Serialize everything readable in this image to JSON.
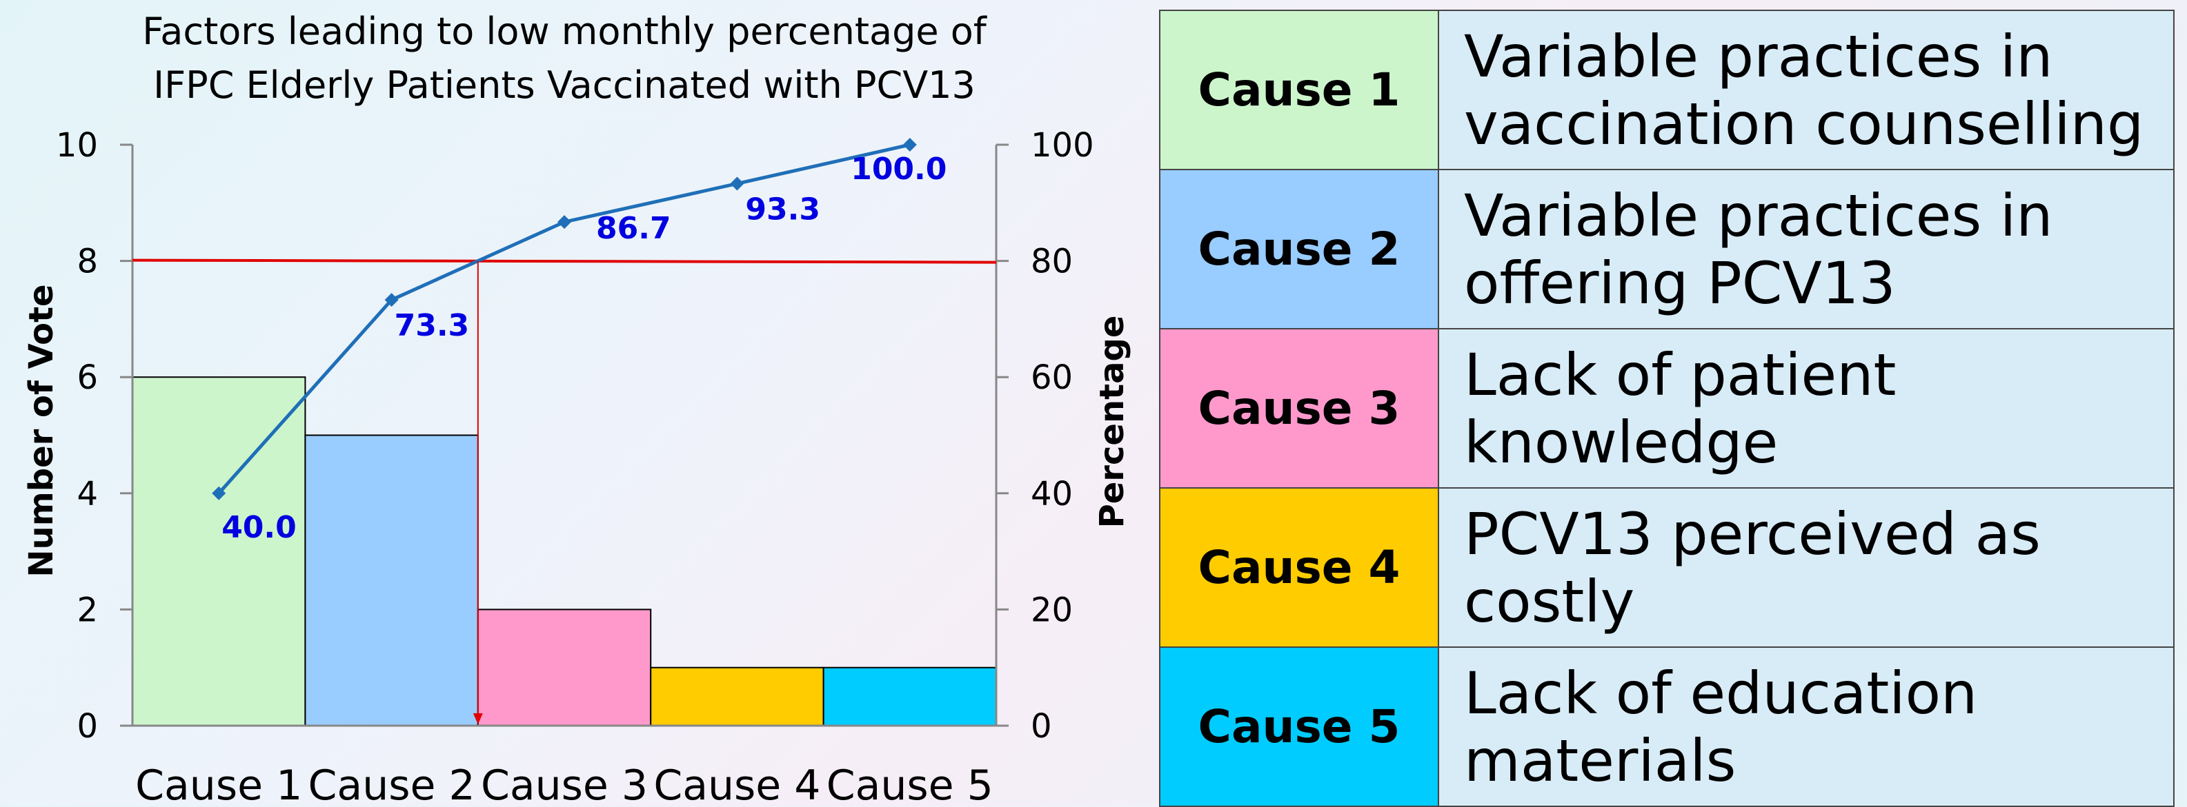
{
  "chart_data": {
    "type": "bar",
    "title_lines": [
      "Factors leading to low monthly percentage of",
      "IFPC Elderly Patients Vaccinated with PCV13"
    ],
    "categories": [
      "Cause 1",
      "Cause 2",
      "Cause 3",
      "Cause 4",
      "Cause 5"
    ],
    "values": [
      6,
      5,
      2,
      1,
      1
    ],
    "bar_colors": [
      "#ccf5cc",
      "#99ccff",
      "#ff99cc",
      "#ffcc00",
      "#00ccff"
    ],
    "ylabel": "Number of Vote",
    "ylim": [
      0,
      10
    ],
    "yticks": [
      0,
      2,
      4,
      6,
      8,
      10
    ],
    "y2label": "Percentage",
    "y2lim": [
      0,
      100
    ],
    "y2ticks": [
      0,
      20,
      40,
      60,
      80,
      100
    ],
    "cumulative": {
      "values": [
        40.0,
        73.3,
        86.7,
        93.3,
        100.0
      ],
      "labels": [
        "40.0",
        "73.3",
        "86.7",
        "93.3",
        "100.0"
      ],
      "color": "#1f6fb8",
      "label_color": "#0000e0"
    },
    "threshold": {
      "value": 80,
      "color": "#e00000"
    },
    "grid": false
  },
  "legend": {
    "rows": [
      {
        "cause": "Cause 1",
        "lines": [
          "Variable practices in",
          "vaccination counselling"
        ]
      },
      {
        "cause": "Cause 2",
        "lines": [
          "Variable practices in",
          "offering PCV13"
        ]
      },
      {
        "cause": "Cause 3",
        "lines": [
          "Lack of patient knowledge"
        ]
      },
      {
        "cause": "Cause 4",
        "lines": [
          "PCV13 perceived as costly"
        ]
      },
      {
        "cause": "Cause 5",
        "lines": [
          "Lack of education",
          "materials"
        ]
      }
    ]
  }
}
